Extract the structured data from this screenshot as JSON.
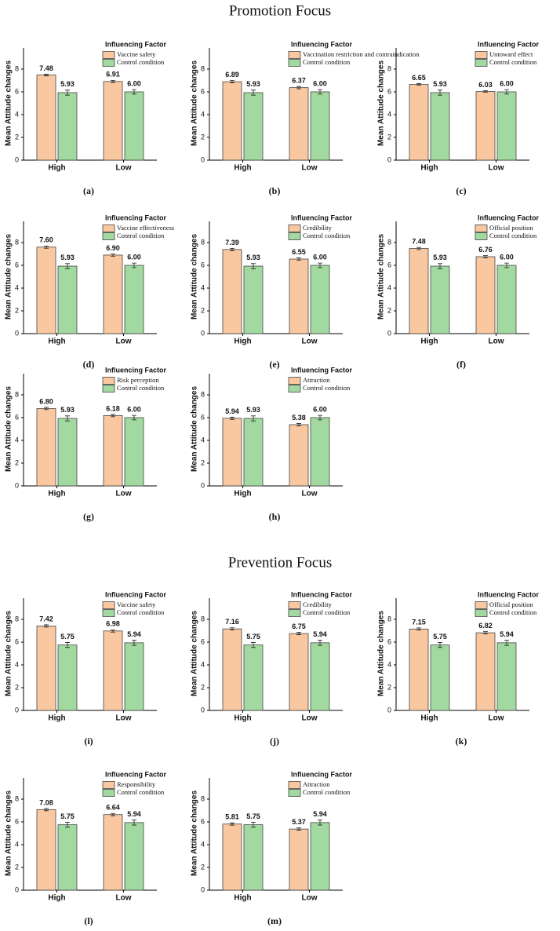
{
  "headings": [
    "Promotion Focus",
    "Prevention Focus"
  ],
  "chart_data": [
    {
      "type": "bar",
      "caption": "(a)",
      "legend_title": "Influencing Factor",
      "y_label": "Mean Attitude changes",
      "categories": [
        "High",
        "Low"
      ],
      "ylim": [
        0,
        10
      ],
      "yticks": [
        0,
        2,
        4,
        6,
        8
      ],
      "series": [
        {
          "name": "Vaccine safety",
          "color": "#fac8a0",
          "values": [
            7.48,
            6.91
          ],
          "value_labels": [
            "7.48",
            "6.91"
          ],
          "errors": [
            0.08,
            0.1
          ]
        },
        {
          "name": "Control condition",
          "color": "#a2d9a0",
          "values": [
            5.93,
            6.0
          ],
          "value_labels": [
            "5.93",
            "6.00"
          ],
          "errors": [
            0.22,
            0.2
          ]
        }
      ]
    },
    {
      "type": "bar",
      "caption": "(b)",
      "legend_title": "Influencing Factor",
      "y_label": "Mean Attitude changes",
      "categories": [
        "High",
        "Low"
      ],
      "ylim": [
        0,
        10
      ],
      "yticks": [
        0,
        2,
        4,
        6,
        8
      ],
      "series": [
        {
          "name": "Vaccination restriction and contraindication",
          "color": "#fac8a0",
          "values": [
            6.89,
            6.37
          ],
          "value_labels": [
            "6.89",
            "6.37"
          ],
          "errors": [
            0.1,
            0.1
          ]
        },
        {
          "name": "Control condition",
          "color": "#a2d9a0",
          "values": [
            5.93,
            6.0
          ],
          "value_labels": [
            "5.93",
            "6.00"
          ],
          "errors": [
            0.22,
            0.2
          ]
        }
      ]
    },
    {
      "type": "bar",
      "caption": "(c)",
      "legend_title": "Influencing Factor",
      "y_label": "Mean Attitude changes",
      "categories": [
        "High",
        "Low"
      ],
      "ylim": [
        0,
        10
      ],
      "yticks": [
        0,
        2,
        4,
        6,
        8
      ],
      "series": [
        {
          "name": "Untoward effect",
          "color": "#fac8a0",
          "values": [
            6.65,
            6.03
          ],
          "value_labels": [
            "6.65",
            "6.03"
          ],
          "errors": [
            0.08,
            0.08
          ]
        },
        {
          "name": "Control condition",
          "color": "#a2d9a0",
          "values": [
            5.93,
            6.0
          ],
          "value_labels": [
            "5.93",
            "6.00"
          ],
          "errors": [
            0.22,
            0.2
          ]
        }
      ]
    },
    {
      "type": "bar",
      "caption": "(d)",
      "legend_title": "Influencing Factor",
      "y_label": "Mean Attitude changes",
      "categories": [
        "High",
        "Low"
      ],
      "ylim": [
        0,
        10
      ],
      "yticks": [
        0,
        2,
        4,
        6,
        8
      ],
      "series": [
        {
          "name": "Vaccine effectiveness",
          "color": "#fac8a0",
          "values": [
            7.6,
            6.9
          ],
          "value_labels": [
            "7.60",
            "6.90"
          ],
          "errors": [
            0.1,
            0.1
          ]
        },
        {
          "name": "Control condition",
          "color": "#a2d9a0",
          "values": [
            5.93,
            6.0
          ],
          "value_labels": [
            "5.93",
            "6.00"
          ],
          "errors": [
            0.22,
            0.2
          ]
        }
      ]
    },
    {
      "type": "bar",
      "caption": "(e)",
      "legend_title": "Influencing Factor",
      "y_label": "Mean Attitude changes",
      "categories": [
        "High",
        "Low"
      ],
      "ylim": [
        0,
        10
      ],
      "yticks": [
        0,
        2,
        4,
        6,
        8
      ],
      "series": [
        {
          "name": "Credibility",
          "color": "#fac8a0",
          "values": [
            7.39,
            6.55
          ],
          "value_labels": [
            "7.39",
            "6.55"
          ],
          "errors": [
            0.1,
            0.1
          ]
        },
        {
          "name": "Control condition",
          "color": "#a2d9a0",
          "values": [
            5.93,
            6.0
          ],
          "value_labels": [
            "5.93",
            "6.00"
          ],
          "errors": [
            0.22,
            0.2
          ]
        }
      ]
    },
    {
      "type": "bar",
      "caption": "(f)",
      "legend_title": "Influencing Factor",
      "y_label": "Mean Attitude changes",
      "categories": [
        "High",
        "Low"
      ],
      "ylim": [
        0,
        10
      ],
      "yticks": [
        0,
        2,
        4,
        6,
        8
      ],
      "series": [
        {
          "name": "Official position",
          "color": "#fac8a0",
          "values": [
            7.48,
            6.76
          ],
          "value_labels": [
            "7.48",
            "6.76"
          ],
          "errors": [
            0.1,
            0.1
          ]
        },
        {
          "name": "Control condition",
          "color": "#a2d9a0",
          "values": [
            5.93,
            6.0
          ],
          "value_labels": [
            "5.93",
            "6.00"
          ],
          "errors": [
            0.22,
            0.2
          ]
        }
      ]
    },
    {
      "type": "bar",
      "caption": "(g)",
      "legend_title": "Influencing Factor",
      "y_label": "Mean Attitude changes",
      "categories": [
        "High",
        "Low"
      ],
      "ylim": [
        0,
        10
      ],
      "yticks": [
        0,
        2,
        4,
        6,
        8
      ],
      "series": [
        {
          "name": "Risk perception",
          "color": "#fac8a0",
          "values": [
            6.8,
            6.18
          ],
          "value_labels": [
            "6.80",
            "6.18"
          ],
          "errors": [
            0.1,
            0.1
          ]
        },
        {
          "name": "Control condition",
          "color": "#a2d9a0",
          "values": [
            5.93,
            6.0
          ],
          "value_labels": [
            "5.93",
            "6.00"
          ],
          "errors": [
            0.22,
            0.2
          ]
        }
      ]
    },
    {
      "type": "bar",
      "caption": "(h)",
      "legend_title": "Influencing Factor",
      "y_label": "Mean Attitude changes",
      "categories": [
        "High",
        "Low"
      ],
      "ylim": [
        0,
        10
      ],
      "yticks": [
        0,
        2,
        4,
        6,
        8
      ],
      "series": [
        {
          "name": "Attraction",
          "color": "#fac8a0",
          "values": [
            5.94,
            5.38
          ],
          "value_labels": [
            "5.94",
            "5.38"
          ],
          "errors": [
            0.1,
            0.1
          ]
        },
        {
          "name": "Control condition",
          "color": "#a2d9a0",
          "values": [
            5.93,
            6.0
          ],
          "value_labels": [
            "5.93",
            "6.00"
          ],
          "errors": [
            0.22,
            0.2
          ]
        }
      ]
    },
    {
      "type": "bar",
      "caption": "(i)",
      "legend_title": "Influencing Factor",
      "y_label": "Mean Attitude changes",
      "categories": [
        "High",
        "Low"
      ],
      "ylim": [
        0,
        10
      ],
      "yticks": [
        0,
        2,
        4,
        6,
        8
      ],
      "series": [
        {
          "name": "Vaccine safety",
          "color": "#fac8a0",
          "values": [
            7.42,
            6.98
          ],
          "value_labels": [
            "7.42",
            "6.98"
          ],
          "errors": [
            0.1,
            0.1
          ]
        },
        {
          "name": "Control condition",
          "color": "#a2d9a0",
          "values": [
            5.75,
            5.94
          ],
          "value_labels": [
            "5.75",
            "5.94"
          ],
          "errors": [
            0.22,
            0.22
          ]
        }
      ]
    },
    {
      "type": "bar",
      "caption": "(j)",
      "legend_title": "Influencing Factor",
      "y_label": "Mean Attitude changes",
      "categories": [
        "High",
        "Low"
      ],
      "ylim": [
        0,
        10
      ],
      "yticks": [
        0,
        2,
        4,
        6,
        8
      ],
      "series": [
        {
          "name": "Credibility",
          "color": "#fac8a0",
          "values": [
            7.16,
            6.75
          ],
          "value_labels": [
            "7.16",
            "6.75"
          ],
          "errors": [
            0.1,
            0.1
          ]
        },
        {
          "name": "Control condition",
          "color": "#a2d9a0",
          "values": [
            5.75,
            5.94
          ],
          "value_labels": [
            "5.75",
            "5.94"
          ],
          "errors": [
            0.22,
            0.22
          ]
        }
      ]
    },
    {
      "type": "bar",
      "caption": "(k)",
      "legend_title": "Influencing Factor",
      "y_label": "Mean Attitude changes",
      "categories": [
        "High",
        "Low"
      ],
      "ylim": [
        0,
        10
      ],
      "yticks": [
        0,
        2,
        4,
        6,
        8
      ],
      "series": [
        {
          "name": "Official position",
          "color": "#fac8a0",
          "values": [
            7.15,
            6.82
          ],
          "value_labels": [
            "7.15",
            "6.82"
          ],
          "errors": [
            0.1,
            0.1
          ]
        },
        {
          "name": "Control condition",
          "color": "#a2d9a0",
          "values": [
            5.75,
            5.94
          ],
          "value_labels": [
            "5.75",
            "5.94"
          ],
          "errors": [
            0.22,
            0.22
          ]
        }
      ]
    },
    {
      "type": "bar",
      "caption": "(l)",
      "legend_title": "Influencing Factor",
      "y_label": "Mean Attitude changes",
      "categories": [
        "High",
        "Low"
      ],
      "ylim": [
        0,
        10
      ],
      "yticks": [
        0,
        2,
        4,
        6,
        8
      ],
      "series": [
        {
          "name": "Responsibility",
          "color": "#fac8a0",
          "values": [
            7.08,
            6.64
          ],
          "value_labels": [
            "7.08",
            "6.64"
          ],
          "errors": [
            0.1,
            0.1
          ]
        },
        {
          "name": "Control condition",
          "color": "#a2d9a0",
          "values": [
            5.75,
            5.94
          ],
          "value_labels": [
            "5.75",
            "5.94"
          ],
          "errors": [
            0.22,
            0.22
          ]
        }
      ]
    },
    {
      "type": "bar",
      "caption": "(m)",
      "legend_title": "Influencing Factor",
      "y_label": "Mean Attitude changes",
      "categories": [
        "High",
        "Low"
      ],
      "ylim": [
        0,
        10
      ],
      "yticks": [
        0,
        2,
        4,
        6,
        8
      ],
      "series": [
        {
          "name": "Attraction",
          "color": "#fac8a0",
          "values": [
            5.81,
            5.37
          ],
          "value_labels": [
            "5.81",
            "5.37"
          ],
          "errors": [
            0.1,
            0.1
          ]
        },
        {
          "name": "Control condition",
          "color": "#a2d9a0",
          "values": [
            5.75,
            5.94
          ],
          "value_labels": [
            "5.75",
            "5.94"
          ],
          "errors": [
            0.22,
            0.22
          ]
        }
      ]
    }
  ]
}
